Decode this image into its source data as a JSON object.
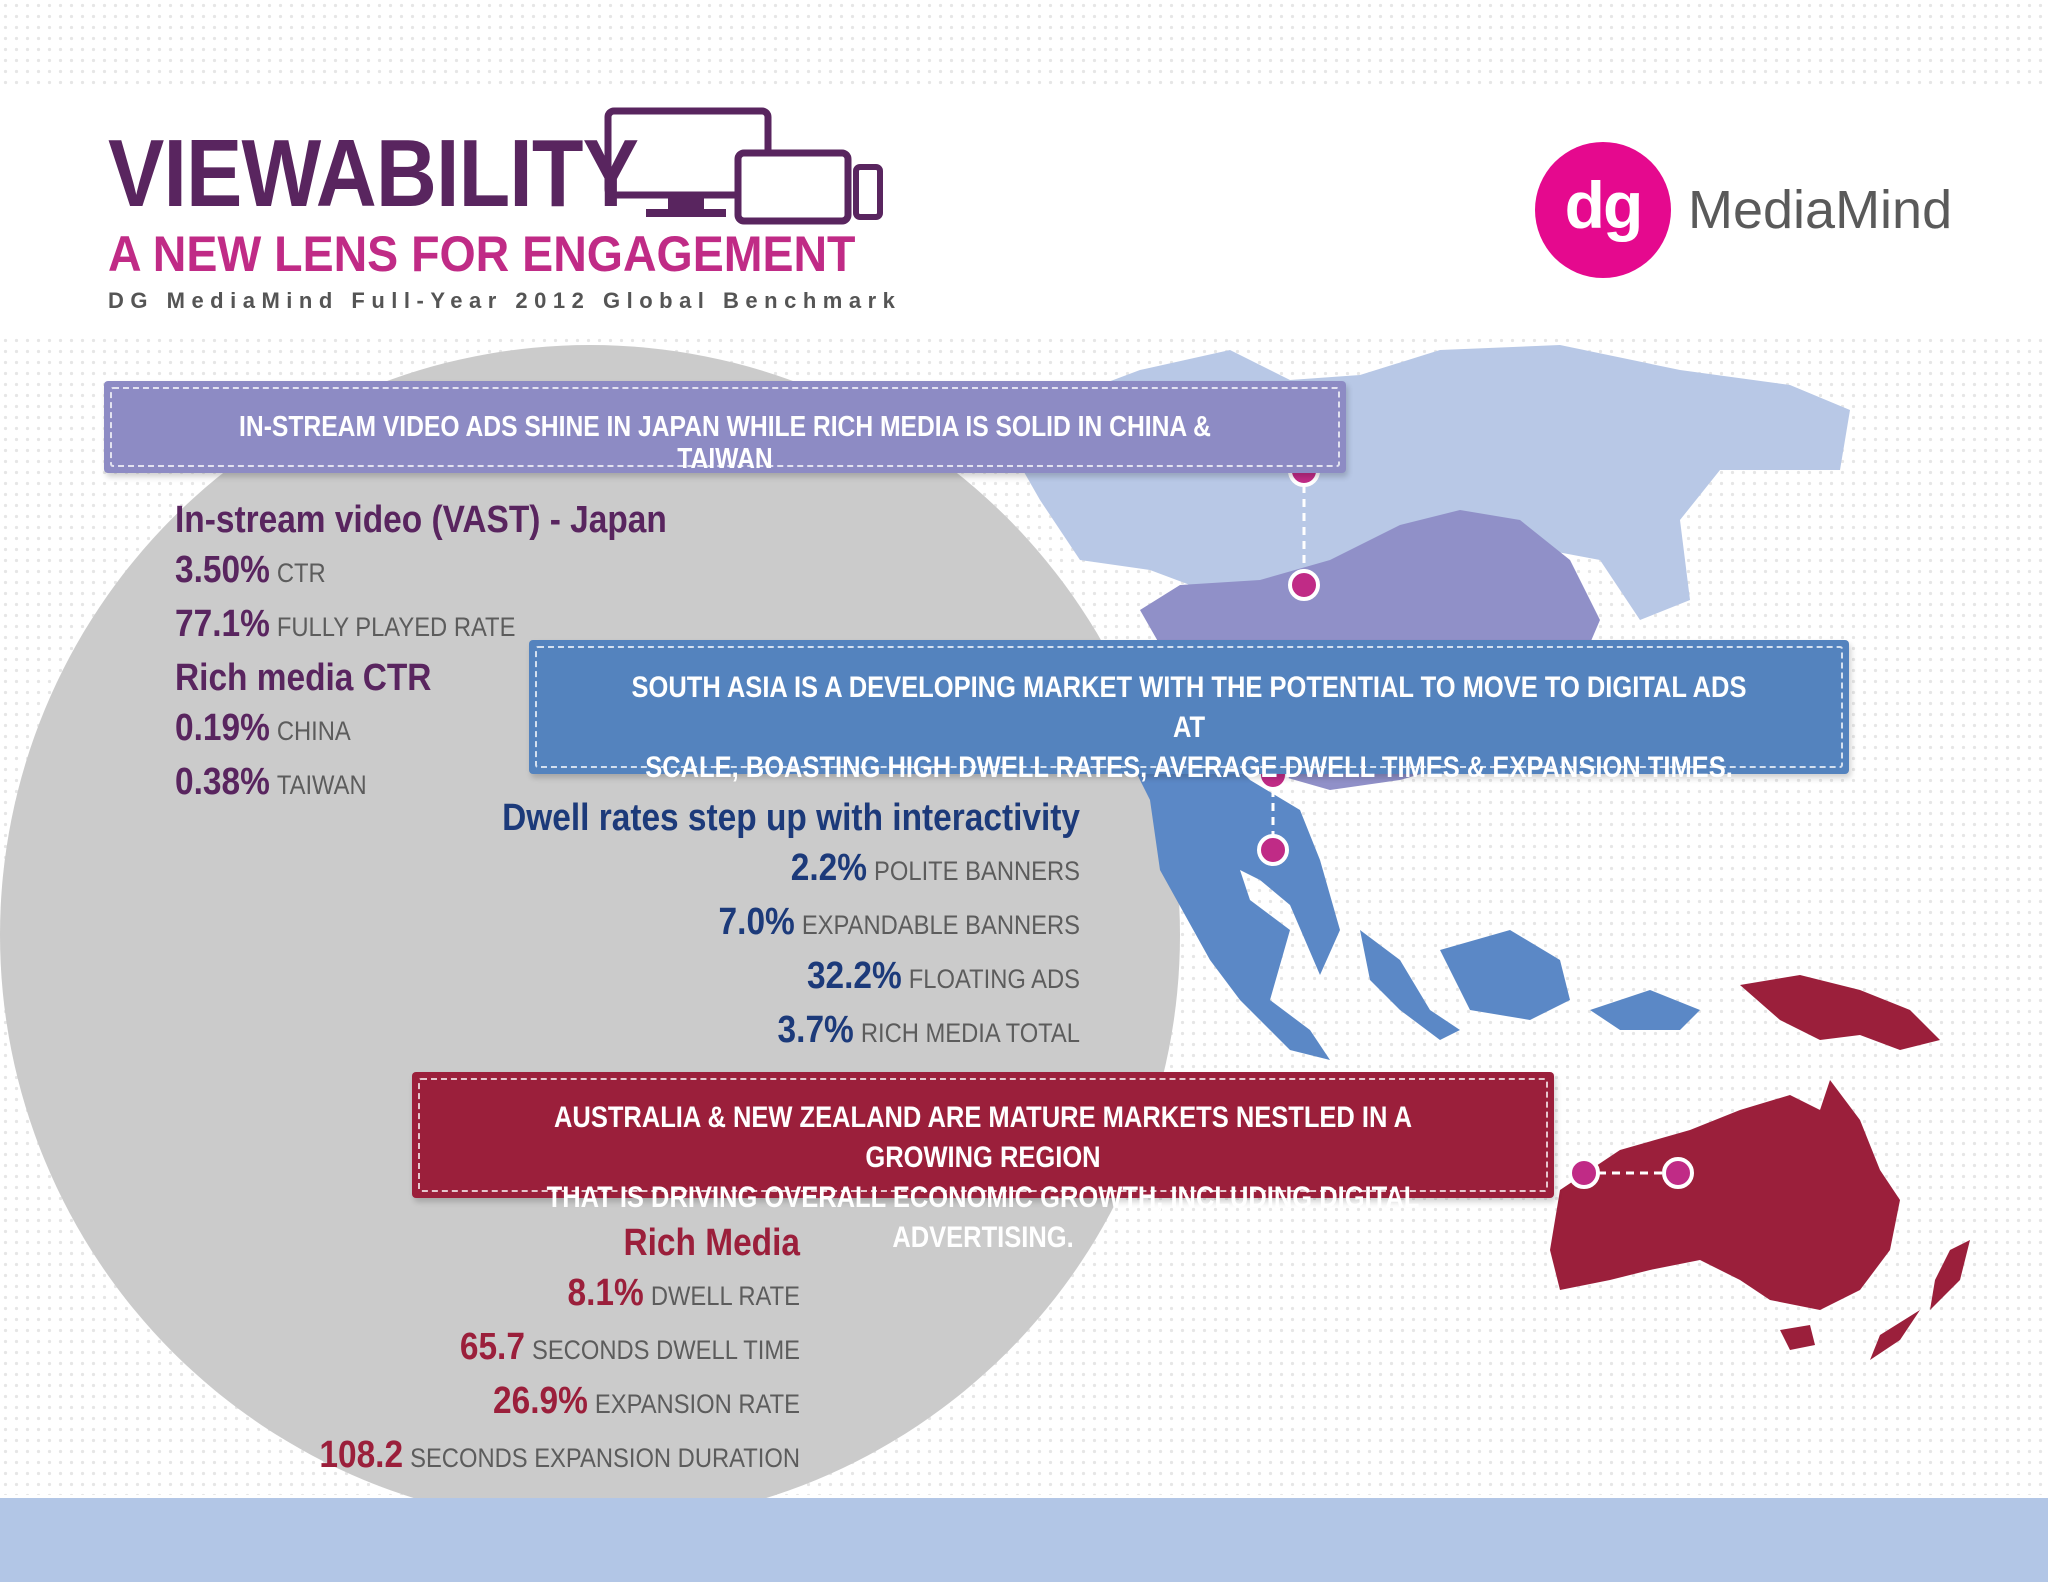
{
  "header": {
    "title": "VIEWABILITY",
    "subtitle": "A NEW LENS FOR ENGAGEMENT",
    "benchmark": "DG MediaMind Full-Year 2012 Global Benchmark",
    "devices_icon": "screens-devices-icon"
  },
  "logo": {
    "mark": "dg",
    "name": "MediaMind",
    "color": "#e5098e"
  },
  "colors": {
    "purple": "#59255f",
    "magenta": "#c02b86",
    "lavender": "#8d8bc4",
    "blue": "#5483be",
    "navy": "#1c3a7a",
    "red": "#9b1f3b"
  },
  "banners": {
    "japan": "IN-STREAM VIDEO ADS SHINE IN JAPAN WHILE RICH MEDIA IS SOLID IN CHINA & TAIWAN",
    "south_asia": [
      "SOUTH ASIA IS A DEVELOPING MARKET WITH THE POTENTIAL TO MOVE TO DIGITAL ADS AT",
      "SCALE, BOASTING HIGH DWELL RATES, AVERAGE DWELL TIMES & EXPANSION TIMES."
    ],
    "australia": [
      "AUSTRALIA & NEW ZEALAND ARE MATURE MARKETS NESTLED IN A GROWING REGION",
      "THAT IS DRIVING OVERALL ECONOMIC GROWTH, INCLUDING DIGITAL ADVERTISING."
    ]
  },
  "japan_stats": {
    "heading": "In-stream video (VAST) - Japan",
    "rows": [
      {
        "value": "3.50%",
        "label": "CTR"
      },
      {
        "value": "77.1%",
        "label": "FULLY PLAYED RATE"
      }
    ],
    "rich_heading": "Rich media CTR",
    "rich_rows": [
      {
        "value": "0.19%",
        "label": "CHINA"
      },
      {
        "value": "0.38%",
        "label": "TAIWAN"
      }
    ]
  },
  "dwell_stats": {
    "heading": "Dwell rates step up with interactivity",
    "rows": [
      {
        "value": "2.2%",
        "label": "POLITE BANNERS"
      },
      {
        "value": "7.0%",
        "label": "EXPANDABLE BANNERS"
      },
      {
        "value": "32.2%",
        "label": "FLOATING ADS"
      },
      {
        "value": "3.7%",
        "label": "RICH MEDIA TOTAL"
      }
    ]
  },
  "australia_stats": {
    "heading": "Rich Media",
    "rows": [
      {
        "value": "8.1%",
        "label": "DWELL RATE"
      },
      {
        "value": "65.7",
        "label": "SECONDS DWELL TIME"
      },
      {
        "value": "26.9%",
        "label": "EXPANSION RATE"
      },
      {
        "value": "108.2",
        "label": "SECONDS EXPANSION DURATION"
      }
    ]
  }
}
